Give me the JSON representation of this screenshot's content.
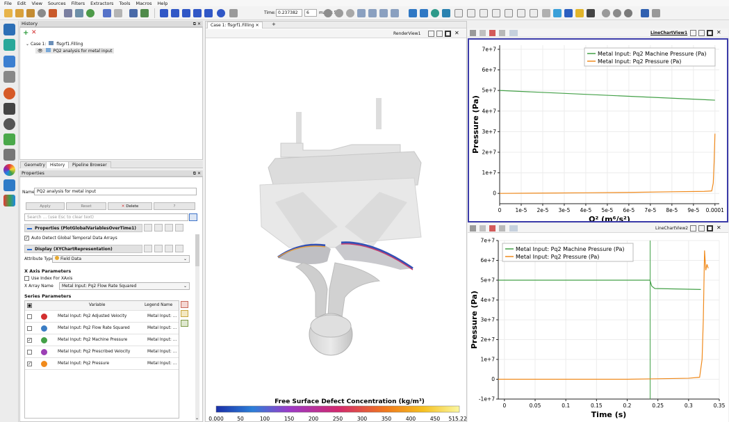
{
  "menu": [
    "File",
    "Edit",
    "View",
    "Sources",
    "Filters",
    "Extractors",
    "Tools",
    "Macros",
    "Help"
  ],
  "toolbar": {
    "time_label": "Time:",
    "time_value": "0.237382",
    "step_value": "6",
    "max_label": "max is 53"
  },
  "history_panel": {
    "title": "History",
    "tree": [
      {
        "label": "Case 1:",
        "name": "flsgrf1.Filling"
      },
      {
        "label": "PQ2 analysis for metal input"
      }
    ]
  },
  "left_tabs": [
    "Geometry",
    "History",
    "Pipeline Browser"
  ],
  "properties": {
    "title": "Properties",
    "name_label": "Name",
    "name_value": "PQ2 analysis for metal input",
    "apply": "Apply",
    "reset": "Reset",
    "delete": "Delete",
    "help": "?",
    "search_placeholder": "Search ... (use Esc to clear text)",
    "properties_section": "Properties (PlotGlobalVariablesOverTime1)",
    "auto_detect": "Auto Detect Global Temporal Data Arrays",
    "display_section": "Display (XYChartRepresentation)",
    "attribute_type_label": "Attribute Type",
    "attribute_type_value": "Field Data",
    "x_axis_params": "X Axis Parameters",
    "use_index": "Use Index For XAxis",
    "x_array_label": "X Array Name",
    "x_array_value": "Metal Input: Pq2 Flow Rate Squared",
    "series_params": "Series Parameters",
    "series_header_variable": "Variable",
    "series_header_legend": "Legend Name",
    "series": [
      {
        "checked": false,
        "color": "#d32f2f",
        "variable": "Metal Input: Pq2 Adjusted Velocity",
        "legend": "Metal Input: ..."
      },
      {
        "checked": false,
        "color": "#3b7dc4",
        "variable": "Metal Input: Pq2 Flow Rate Squared",
        "legend": "Metal Input: ..."
      },
      {
        "checked": true,
        "color": "#43a047",
        "variable": "Metal Input: Pq2 Machine Pressure",
        "legend": "Metal Input: ..."
      },
      {
        "checked": false,
        "color": "#9c3fb5",
        "variable": "Metal Input: Pq2 Prescribed Velocity",
        "legend": "Metal Input: ..."
      },
      {
        "checked": true,
        "color": "#f08a1c",
        "variable": "Metal Input: Pq2 Pressure",
        "legend": "Metal Input: ..."
      }
    ]
  },
  "render_view": {
    "tab": "Case 1: flsgrf1.Filling",
    "tab_close": "✕",
    "tab_add": "+",
    "view_name": "RenderView1",
    "colorbar_title": "Free Surface Defect Concentration (kg/m³)",
    "colorbar_ticks": [
      "0.000",
      "50",
      "100",
      "150",
      "200",
      "250",
      "300",
      "350",
      "400",
      "450",
      "515.223"
    ]
  },
  "chart1_label": "LineChartView1",
  "chart2_label": "LineChartView2",
  "colors": {
    "machine_pressure": "#43a047",
    "pressure": "#f08a1c",
    "active_view_border": "#3a3aa8"
  },
  "chart_data": [
    {
      "type": "line",
      "title": "",
      "xlabel": "Q² (m⁶/s²)",
      "ylabel": "Pressure (Pa)",
      "xlim": [
        0,
        0.000102
      ],
      "ylim": [
        -5000000,
        72000000
      ],
      "x_ticks": [
        "0",
        "1e-5",
        "2e-5",
        "3e-5",
        "4e-5",
        "5e-5",
        "6e-5",
        "7e-5",
        "8e-5",
        "9e-5",
        "0.0001"
      ],
      "y_ticks": [
        "0",
        "1e+7",
        "2e+7",
        "3e+7",
        "4e+7",
        "5e+7",
        "6e+7",
        "7e+7"
      ],
      "legend_position": "top-right",
      "grid": true,
      "series": [
        {
          "name": "Metal Input: Pq2 Machine Pressure  (Pa)",
          "x": [
            0,
            0.0001
          ],
          "y": [
            50000000,
            45300000
          ]
        },
        {
          "name": "Metal Input: Pq2 Pressure  (Pa)",
          "x": [
            0,
            2e-05,
            4e-05,
            6e-05,
            8e-05,
            9.5e-05,
            9.85e-05,
            9.92e-05,
            9.96e-05,
            0.0001
          ],
          "y": [
            0,
            150000,
            300000,
            500000,
            800000,
            1000000,
            1200000,
            5000000,
            15000000,
            29000000
          ]
        }
      ]
    },
    {
      "type": "line",
      "title": "",
      "xlabel": "Time (s)",
      "ylabel": "Pressure (Pa)",
      "xlim": [
        -0.01,
        0.35
      ],
      "ylim": [
        -10000000,
        70000000
      ],
      "x_ticks": [
        "0",
        "0.05",
        "0.1",
        "0.15",
        "0.2",
        "0.25",
        "0.3",
        "0.35"
      ],
      "y_ticks": [
        "-1e+7",
        "0",
        "1e+7",
        "2e+7",
        "3e+7",
        "4e+7",
        "5e+7",
        "6e+7",
        "7e+7"
      ],
      "legend_position": "top-left",
      "grid": true,
      "series": [
        {
          "name": "Metal Input: Pq2 Machine Pressure  (Pa)",
          "x": [
            -0.01,
            0.237,
            0.24,
            0.245,
            0.32
          ],
          "y": [
            50000000,
            50000000,
            47000000,
            45800000,
            45300000
          ]
        },
        {
          "name": "Metal Input: Pq2 Pressure  (Pa)",
          "x": [
            -0.01,
            0.2,
            0.24,
            0.3,
            0.318,
            0.322,
            0.324,
            0.326,
            0.328,
            0.33,
            0.332
          ],
          "y": [
            0,
            0,
            200000,
            500000,
            1000000,
            10000000,
            30000000,
            65000000,
            55000000,
            58000000,
            56000000
          ]
        }
      ],
      "cursor_time": 0.237382
    }
  ]
}
